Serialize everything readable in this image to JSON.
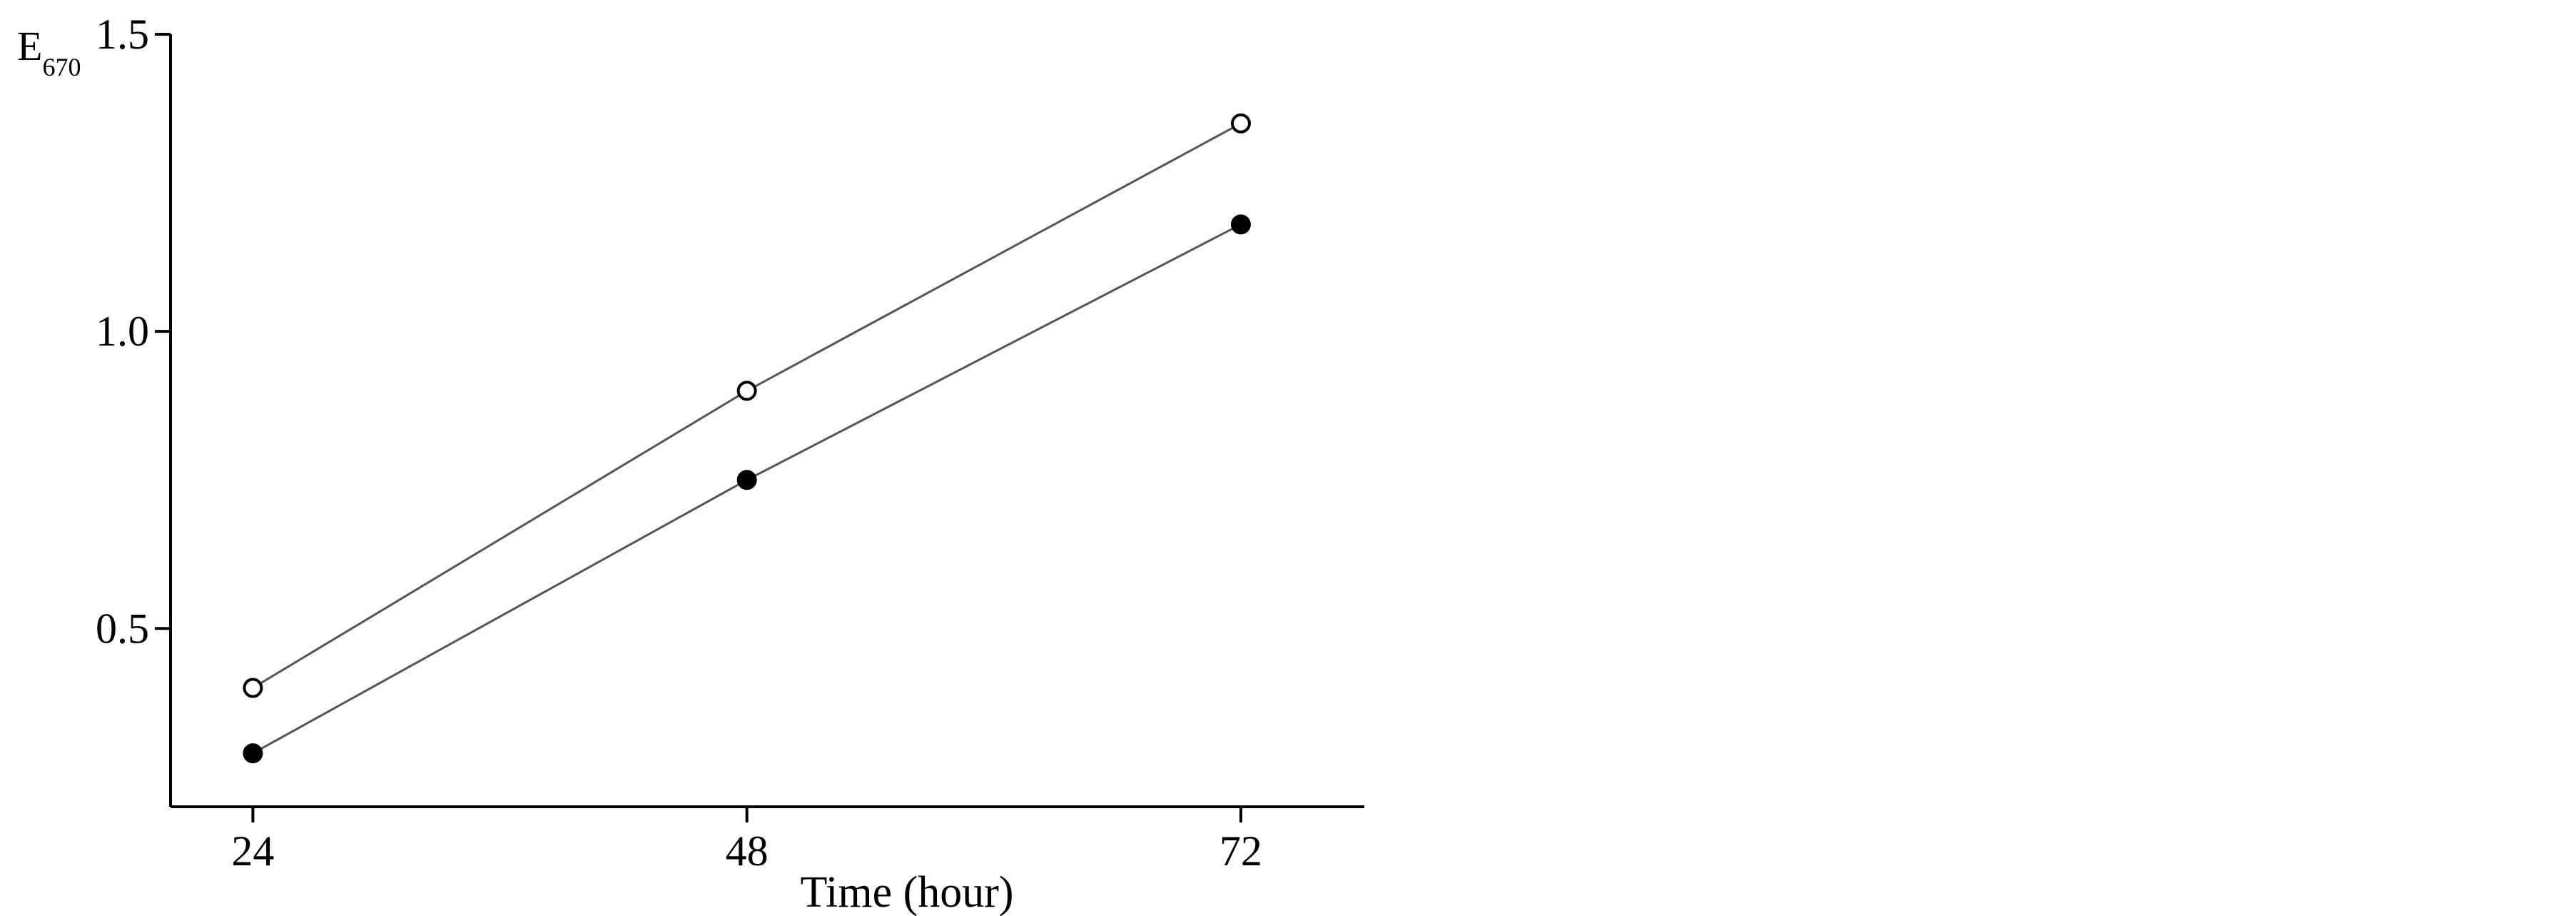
{
  "chart_data": {
    "type": "line",
    "title": "",
    "xlabel": "Time (hour)",
    "ylabel": "E",
    "ylabel_subscript": "670",
    "x": [
      24,
      48,
      72
    ],
    "x_ticks": [
      24,
      48,
      72
    ],
    "x_tick_labels": [
      "24",
      "48",
      "72"
    ],
    "y_ticks": [
      0.5,
      1.0,
      1.5
    ],
    "y_tick_labels": [
      "0.5",
      "1.0",
      "1.5"
    ],
    "xlim": [
      20,
      78
    ],
    "ylim": [
      0.2,
      1.5
    ],
    "grid": false,
    "legend": "none",
    "series": [
      {
        "marker": "open-circle",
        "values": [
          0.4,
          0.9,
          1.35
        ]
      },
      {
        "marker": "filled-circle",
        "values": [
          0.29,
          0.75,
          1.18
        ]
      }
    ],
    "colors": {
      "axis": "#000000",
      "line": "#555555",
      "marker_fill_open": "#ffffff",
      "marker_fill_filled": "#000000"
    }
  }
}
